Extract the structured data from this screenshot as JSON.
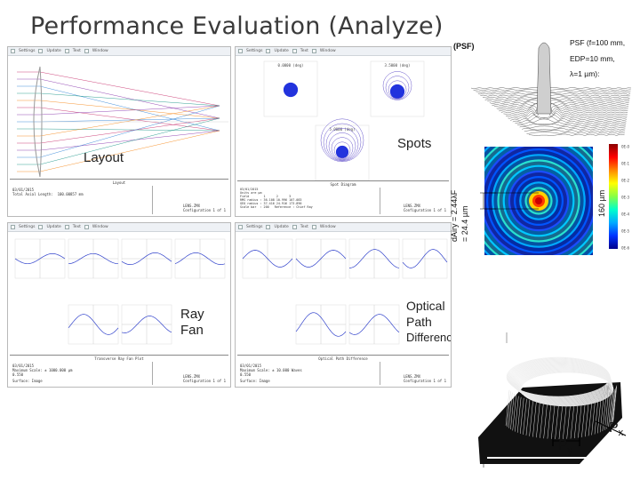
{
  "slide": {
    "title": "Performance Evaluation (Analyze)"
  },
  "windows": {
    "layout": {
      "toolbar": [
        "Settings",
        "Update",
        "Text",
        "Window"
      ],
      "caption": "Layout",
      "info": "03/01/2015\nTotal Axial Length:  100.00857 mm",
      "file": "LENS.ZMX\nConfiguration 1 of 1",
      "callout": "Layout"
    },
    "spots": {
      "toolbar": [
        "Settings",
        "Update",
        "Text",
        "Window"
      ],
      "fields": [
        "0.0000 (deg)",
        "3.5000 (deg)",
        "5.0000 (deg)"
      ],
      "caption": "Spot Diagram",
      "info": "03/01/2015\nUnits are µm\nField        1      2      3\nRMS radius : 36.108 10.996 107.083\nGEO radius : 37.416 24.916 173.890\nScale bar  : 200   Reference : Chief Ray",
      "file": "LENS.ZMX\nConfiguration 1 of 1",
      "surface": "Surface: Ima",
      "callout": "Spots"
    },
    "rayfan": {
      "toolbar": [
        "Settings",
        "Update",
        "Text",
        "Window"
      ],
      "caption": "Transverse Ray Fan Plot",
      "info": "03/01/2015\nMaximum Scale: ± 1000.000 µm\n0.550",
      "surface": "Surface: Image",
      "file": "LENS.ZMX\nConfiguration 1 of 1",
      "callout_line1": "Ray",
      "callout_line2": "Fan"
    },
    "opd": {
      "toolbar": [
        "Settings",
        "Update",
        "Text",
        "Window"
      ],
      "caption": "Optical Path Difference",
      "info": "03/01/2015\nMaximum Scale: ± 10.000 Waves\n0.550",
      "surface": "Surface: Image",
      "file": "LENS.ZMX\nConfiguration 1 of 1",
      "callout_line1": "Optical",
      "callout_line2": "Path",
      "callout_line3": "Difference"
    }
  },
  "psf": {
    "header": "(PSF)",
    "params_line1": "PSF (f=100 mm,",
    "params_line2": "EDP=10 mm,",
    "params_line3": "λ=1 µm):",
    "airy_label": "dAiry = 2.44λF",
    "airy_value": "= 24.4 µm",
    "extent_label": "160 µm",
    "colorbar_ticks": [
      "0E-0",
      "0E-1",
      "0E-2",
      "0E-3",
      "0E-4",
      "0E-5",
      "0E-6"
    ]
  },
  "pupil": {
    "px_label": "Px",
    "py_label": "Py"
  },
  "colors": {
    "window_border": "#b9b9b9",
    "toolbar_bg": "#eef1f5",
    "spot_blue": "#2233dd",
    "fan_blue": "#3344cc",
    "text_dark": "#222222"
  }
}
